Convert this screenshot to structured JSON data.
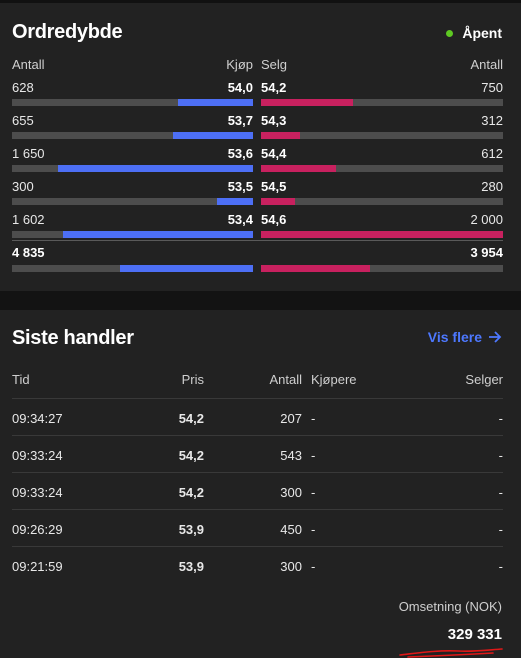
{
  "orderbook": {
    "title": "Ordredybde",
    "status": "Åpent",
    "headers": {
      "qty_left": "Antall",
      "buy": "Kjøp",
      "sell": "Selg",
      "qty_right": "Antall"
    },
    "rows": [
      {
        "bid_qty": "628",
        "bid": "54,0",
        "ask": "54,2",
        "ask_qty": "750",
        "bid_fill": 0.31,
        "ask_fill": 0.38
      },
      {
        "bid_qty": "655",
        "bid": "53,7",
        "ask": "54,3",
        "ask_qty": "312",
        "bid_fill": 0.33,
        "ask_fill": 0.16
      },
      {
        "bid_qty": "1 650",
        "bid": "53,6",
        "ask": "54,4",
        "ask_qty": "612",
        "bid_fill": 0.81,
        "ask_fill": 0.31
      },
      {
        "bid_qty": "300",
        "bid": "53,5",
        "ask": "54,5",
        "ask_qty": "280",
        "bid_fill": 0.15,
        "ask_fill": 0.14
      },
      {
        "bid_qty": "1 602",
        "bid": "53,4",
        "ask": "54,6",
        "ask_qty": "2 000",
        "bid_fill": 0.79,
        "ask_fill": 1.0
      }
    ],
    "total": {
      "bid_qty": "4 835",
      "ask_qty": "3 954",
      "bid_fill": 0.55,
      "ask_fill": 0.45
    },
    "colors": {
      "buy": "#4d6ff5",
      "sell": "#c8215f",
      "open": "#5ec922"
    }
  },
  "trades": {
    "title": "Siste handler",
    "more_link": "Vis flere",
    "columns": {
      "time": "Tid",
      "price": "Pris",
      "qty": "Antall",
      "buyer": "Kjøpere",
      "seller": "Selger"
    },
    "rows": [
      {
        "time": "09:34:27",
        "price": "54,2",
        "qty": "207",
        "buyer": "-",
        "seller": "-"
      },
      {
        "time": "09:33:24",
        "price": "54,2",
        "qty": "543",
        "buyer": "-",
        "seller": "-"
      },
      {
        "time": "09:33:24",
        "price": "54,2",
        "qty": "300",
        "buyer": "-",
        "seller": "-"
      },
      {
        "time": "09:26:29",
        "price": "53,9",
        "qty": "450",
        "buyer": "-",
        "seller": "-"
      },
      {
        "time": "09:21:59",
        "price": "53,9",
        "qty": "300",
        "buyer": "-",
        "seller": "-"
      }
    ],
    "turnover_label": "Omsetning (NOK)",
    "turnover_value": "329 331"
  }
}
